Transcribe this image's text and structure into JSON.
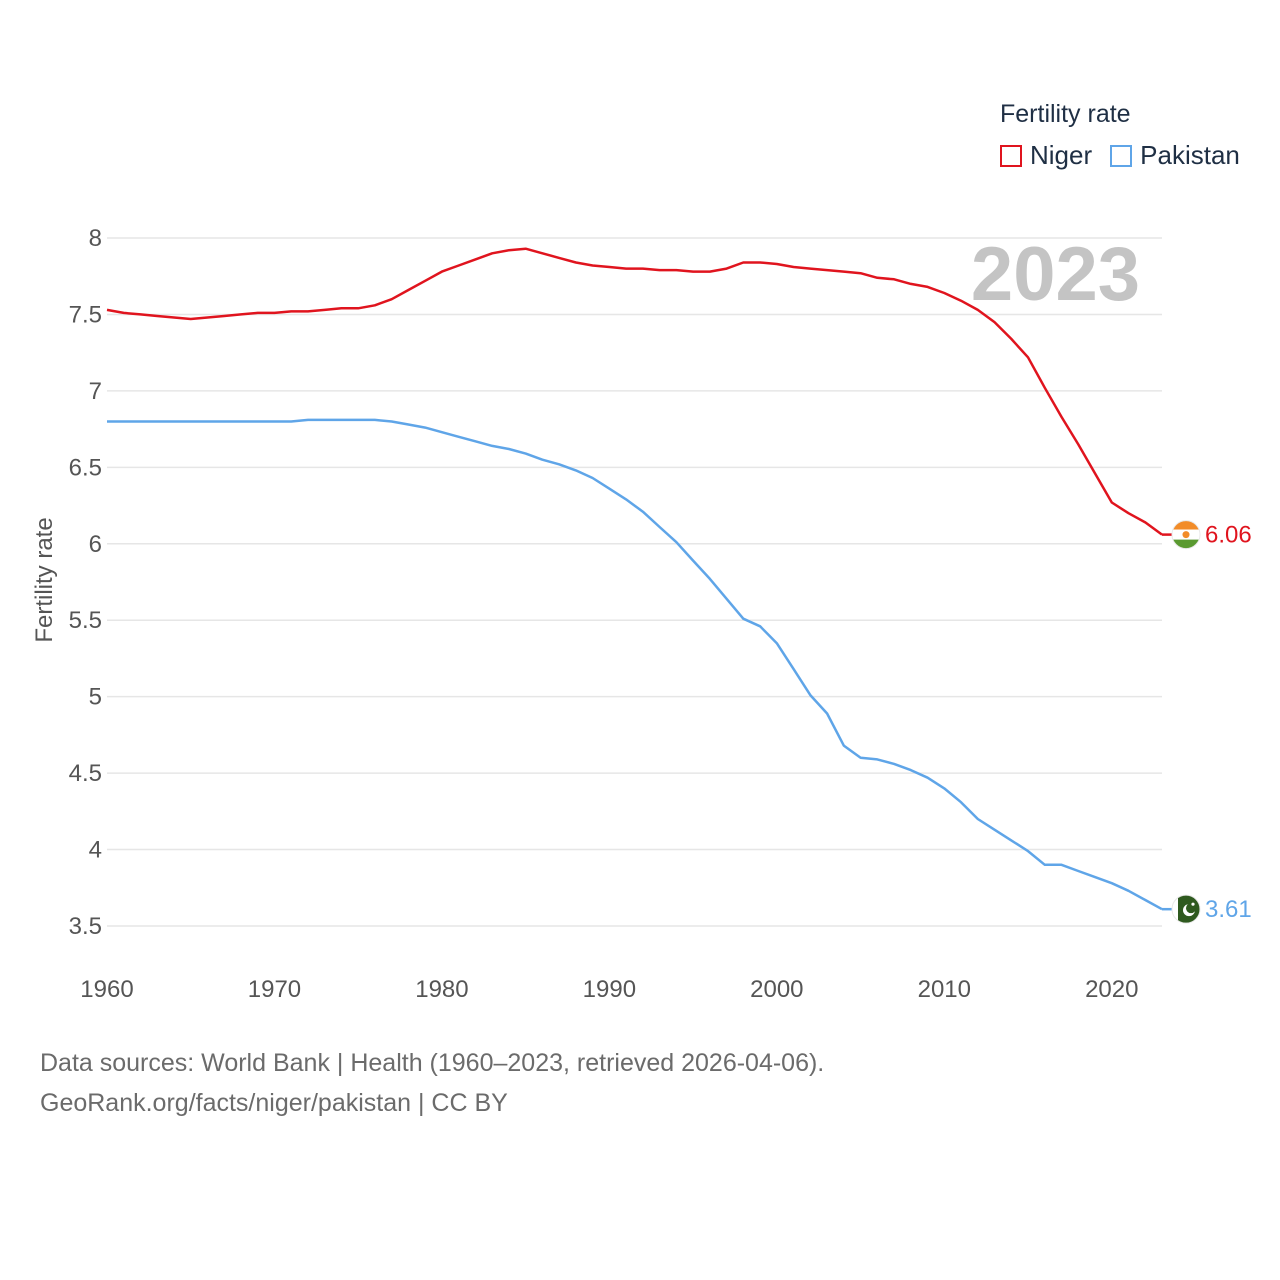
{
  "chart_data": {
    "type": "line",
    "title": "Fertility rate",
    "ylabel": "Fertility rate",
    "xlabel": "",
    "current_year": "2023",
    "xlim": [
      1960,
      2023
    ],
    "ylim": [
      3.35,
      8.15
    ],
    "yticks": [
      "8",
      "7.5",
      "7",
      "6.5",
      "6",
      "5.5",
      "5",
      "4.5",
      "4",
      "3.5"
    ],
    "xticks": [
      "1960",
      "1970",
      "1980",
      "1990",
      "2000",
      "2010",
      "2020"
    ],
    "legend_position": "top-right",
    "series": [
      {
        "name": "Niger",
        "color": "#e0141e",
        "end_label": "6.06",
        "flag_icon": "niger-flag-icon",
        "points": [
          [
            1960,
            7.53
          ],
          [
            1961,
            7.51
          ],
          [
            1962,
            7.5
          ],
          [
            1963,
            7.49
          ],
          [
            1964,
            7.48
          ],
          [
            1965,
            7.47
          ],
          [
            1966,
            7.48
          ],
          [
            1967,
            7.49
          ],
          [
            1968,
            7.5
          ],
          [
            1969,
            7.51
          ],
          [
            1970,
            7.51
          ],
          [
            1971,
            7.52
          ],
          [
            1972,
            7.52
          ],
          [
            1973,
            7.53
          ],
          [
            1974,
            7.54
          ],
          [
            1975,
            7.54
          ],
          [
            1976,
            7.56
          ],
          [
            1977,
            7.6
          ],
          [
            1978,
            7.66
          ],
          [
            1979,
            7.72
          ],
          [
            1980,
            7.78
          ],
          [
            1981,
            7.82
          ],
          [
            1982,
            7.86
          ],
          [
            1983,
            7.9
          ],
          [
            1984,
            7.92
          ],
          [
            1985,
            7.93
          ],
          [
            1986,
            7.9
          ],
          [
            1987,
            7.87
          ],
          [
            1988,
            7.84
          ],
          [
            1989,
            7.82
          ],
          [
            1990,
            7.81
          ],
          [
            1991,
            7.8
          ],
          [
            1992,
            7.8
          ],
          [
            1993,
            7.79
          ],
          [
            1994,
            7.79
          ],
          [
            1995,
            7.78
          ],
          [
            1996,
            7.78
          ],
          [
            1997,
            7.8
          ],
          [
            1998,
            7.84
          ],
          [
            1999,
            7.84
          ],
          [
            2000,
            7.83
          ],
          [
            2001,
            7.81
          ],
          [
            2002,
            7.8
          ],
          [
            2003,
            7.79
          ],
          [
            2004,
            7.78
          ],
          [
            2005,
            7.77
          ],
          [
            2006,
            7.74
          ],
          [
            2007,
            7.73
          ],
          [
            2008,
            7.7
          ],
          [
            2009,
            7.68
          ],
          [
            2010,
            7.64
          ],
          [
            2011,
            7.59
          ],
          [
            2012,
            7.53
          ],
          [
            2013,
            7.45
          ],
          [
            2014,
            7.34
          ],
          [
            2015,
            7.22
          ],
          [
            2016,
            7.02
          ],
          [
            2017,
            6.83
          ],
          [
            2018,
            6.65
          ],
          [
            2019,
            6.46
          ],
          [
            2020,
            6.27
          ],
          [
            2021,
            6.2
          ],
          [
            2022,
            6.14
          ],
          [
            2023,
            6.06
          ]
        ]
      },
      {
        "name": "Pakistan",
        "color": "#5fa5e8",
        "end_label": "3.61",
        "flag_icon": "pakistan-flag-icon",
        "points": [
          [
            1960,
            6.8
          ],
          [
            1961,
            6.8
          ],
          [
            1962,
            6.8
          ],
          [
            1963,
            6.8
          ],
          [
            1964,
            6.8
          ],
          [
            1965,
            6.8
          ],
          [
            1966,
            6.8
          ],
          [
            1967,
            6.8
          ],
          [
            1968,
            6.8
          ],
          [
            1969,
            6.8
          ],
          [
            1970,
            6.8
          ],
          [
            1971,
            6.8
          ],
          [
            1972,
            6.81
          ],
          [
            1973,
            6.81
          ],
          [
            1974,
            6.81
          ],
          [
            1975,
            6.81
          ],
          [
            1976,
            6.81
          ],
          [
            1977,
            6.8
          ],
          [
            1978,
            6.78
          ],
          [
            1979,
            6.76
          ],
          [
            1980,
            6.73
          ],
          [
            1981,
            6.7
          ],
          [
            1982,
            6.67
          ],
          [
            1983,
            6.64
          ],
          [
            1984,
            6.62
          ],
          [
            1985,
            6.59
          ],
          [
            1986,
            6.55
          ],
          [
            1987,
            6.52
          ],
          [
            1988,
            6.48
          ],
          [
            1989,
            6.43
          ],
          [
            1990,
            6.36
          ],
          [
            1991,
            6.29
          ],
          [
            1992,
            6.21
          ],
          [
            1993,
            6.11
          ],
          [
            1994,
            6.01
          ],
          [
            1995,
            5.89
          ],
          [
            1996,
            5.77
          ],
          [
            1997,
            5.64
          ],
          [
            1998,
            5.51
          ],
          [
            1999,
            5.46
          ],
          [
            2000,
            5.35
          ],
          [
            2001,
            5.18
          ],
          [
            2002,
            5.01
          ],
          [
            2003,
            4.89
          ],
          [
            2004,
            4.68
          ],
          [
            2005,
            4.6
          ],
          [
            2006,
            4.59
          ],
          [
            2007,
            4.56
          ],
          [
            2008,
            4.52
          ],
          [
            2009,
            4.47
          ],
          [
            2010,
            4.4
          ],
          [
            2011,
            4.31
          ],
          [
            2012,
            4.2
          ],
          [
            2013,
            4.13
          ],
          [
            2014,
            4.06
          ],
          [
            2015,
            3.99
          ],
          [
            2016,
            3.9
          ],
          [
            2017,
            3.9
          ],
          [
            2018,
            3.86
          ],
          [
            2019,
            3.82
          ],
          [
            2020,
            3.78
          ],
          [
            2021,
            3.73
          ],
          [
            2022,
            3.67
          ],
          [
            2023,
            3.61
          ]
        ]
      }
    ]
  },
  "legend": {
    "title": "Fertility rate",
    "items": [
      {
        "label": "Niger",
        "color": "#e0141e"
      },
      {
        "label": "Pakistan",
        "color": "#5fa5e8"
      }
    ]
  },
  "footer": {
    "line1": "Data sources: World Bank | Health (1960–2023, retrieved 2026-04-06).",
    "line2": "GeoRank.org/facts/niger/pakistan | CC BY"
  }
}
